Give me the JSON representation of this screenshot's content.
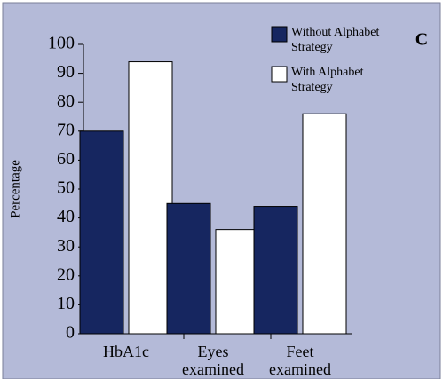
{
  "chart_data": {
    "type": "bar",
    "annotation": "C",
    "y_label": "Percentage",
    "categories": [
      "HbA1c",
      "Eyes examined",
      "Feet examined"
    ],
    "series": [
      {
        "name": "Without Alphabet Strategy",
        "color": "#162660",
        "values": [
          70,
          45,
          44
        ]
      },
      {
        "name": "With Alphabet Strategy",
        "color": "#ffffff",
        "values": [
          94,
          36,
          76
        ]
      }
    ],
    "ylim": [
      0,
      100
    ],
    "yticks": [
      0,
      10,
      20,
      30,
      40,
      50,
      60,
      70,
      80,
      90,
      100
    ],
    "legend": "upper right"
  }
}
